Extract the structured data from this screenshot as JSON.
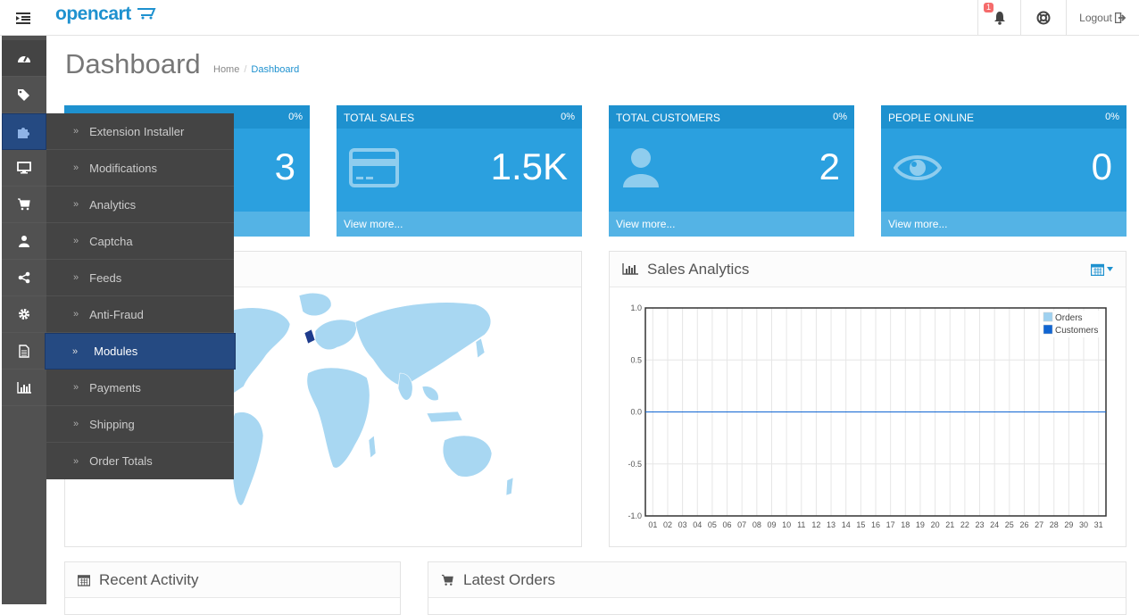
{
  "header": {
    "logo": "opencart",
    "notification_count": "1",
    "logout_label": "Logout"
  },
  "page": {
    "title": "Dashboard",
    "breadcrumb": [
      "Home",
      "Dashboard"
    ]
  },
  "sidebar": {
    "icons": [
      "dashboard-icon",
      "tags-icon",
      "puzzle-icon",
      "desktop-icon",
      "cart-icon",
      "user-icon",
      "share-icon",
      "cog-icon",
      "file-icon",
      "bar-chart-icon"
    ]
  },
  "extensions_menu": {
    "items": [
      "Extension Installer",
      "Modifications",
      "Analytics",
      "Captcha",
      "Feeds",
      "Anti-Fraud",
      "Modules",
      "Payments",
      "Shipping",
      "Order Totals"
    ],
    "active": "Modules"
  },
  "tiles": [
    {
      "title": "",
      "pct": "0%",
      "value": "3",
      "link": ""
    },
    {
      "title": "TOTAL SALES",
      "pct": "0%",
      "value": "1.5K",
      "link": "View more..."
    },
    {
      "title": "TOTAL CUSTOMERS",
      "pct": "0%",
      "value": "2",
      "link": "View more..."
    },
    {
      "title": "PEOPLE ONLINE",
      "pct": "0%",
      "value": "0",
      "link": "View more..."
    }
  ],
  "sales_analytics": {
    "title": "Sales Analytics",
    "yticks": [
      "1.0",
      "0.5",
      "0.0",
      "-0.5",
      "-1.0"
    ],
    "xticks": [
      "01",
      "02",
      "03",
      "04",
      "05",
      "06",
      "07",
      "08",
      "09",
      "10",
      "11",
      "12",
      "13",
      "14",
      "15",
      "16",
      "17",
      "18",
      "19",
      "20",
      "21",
      "22",
      "23",
      "24",
      "25",
      "26",
      "27",
      "28",
      "29",
      "30",
      "31"
    ],
    "legend": [
      "Orders",
      "Customers"
    ]
  },
  "chart_data": {
    "type": "line",
    "title": "Sales Analytics",
    "x": [
      "01",
      "02",
      "03",
      "04",
      "05",
      "06",
      "07",
      "08",
      "09",
      "10",
      "11",
      "12",
      "13",
      "14",
      "15",
      "16",
      "17",
      "18",
      "19",
      "20",
      "21",
      "22",
      "23",
      "24",
      "25",
      "26",
      "27",
      "28",
      "29",
      "30",
      "31"
    ],
    "series": [
      {
        "name": "Orders",
        "values": [
          0,
          0,
          0,
          0,
          0,
          0,
          0,
          0,
          0,
          0,
          0,
          0,
          0,
          0,
          0,
          0,
          0,
          0,
          0,
          0,
          0,
          0,
          0,
          0,
          0,
          0,
          0,
          0,
          0,
          0,
          0
        ]
      },
      {
        "name": "Customers",
        "values": [
          0,
          0,
          0,
          0,
          0,
          0,
          0,
          0,
          0,
          0,
          0,
          0,
          0,
          0,
          0,
          0,
          0,
          0,
          0,
          0,
          0,
          0,
          0,
          0,
          0,
          0,
          0,
          0,
          0,
          0,
          0
        ]
      }
    ],
    "ylim": [
      -1.0,
      1.0
    ],
    "grid": true,
    "legend_position": "top-right",
    "colors": {
      "Orders": "#9fd1f0",
      "Customers": "#1065d2"
    }
  },
  "panels": {
    "recent_activity": "Recent Activity",
    "latest_orders": "Latest Orders"
  },
  "colors": {
    "accent": "#1e91cf",
    "tile": "#2ba0df",
    "sidebar": "#515151",
    "active": "#254a82"
  }
}
